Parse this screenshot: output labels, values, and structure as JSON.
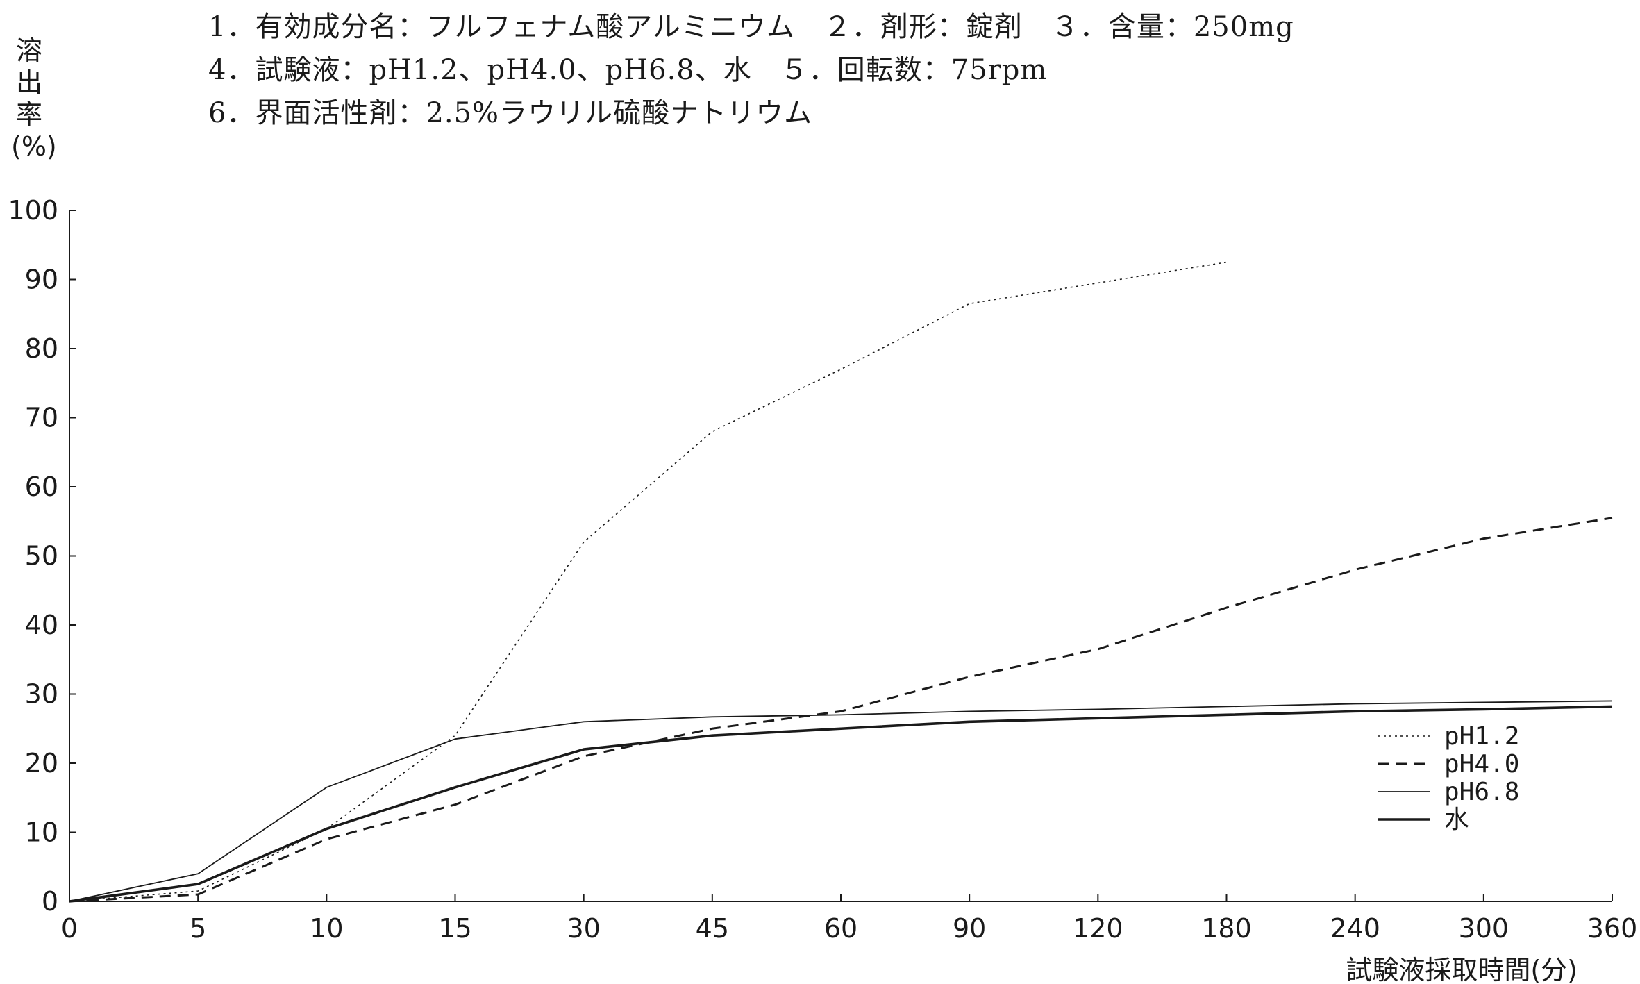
{
  "header": {
    "line1": "1．有効成分名：フルフェナム酸アルミニウム　２．剤形：錠剤　３．含量：250mg",
    "line2": "4．試験液：pH1.2、pH4.0、pH6.8、水　５．回転数：75rpm",
    "line3": "6．界面活性剤：2.5%ラウリル硫酸ナトリウム"
  },
  "chart_data": {
    "type": "line",
    "title": "",
    "ylabel_chars": [
      "溶",
      "出",
      "率",
      "(%)"
    ],
    "xlabel": "試験液採取時間(分)",
    "categories": [
      "0",
      "5",
      "10",
      "15",
      "30",
      "45",
      "60",
      "90",
      "120",
      "180",
      "240",
      "300",
      "360"
    ],
    "yticks": [
      "0",
      "10",
      "20",
      "30",
      "40",
      "50",
      "60",
      "70",
      "80",
      "90",
      "100"
    ],
    "ylim": [
      0,
      100
    ],
    "grid": false,
    "legend_position": "right",
    "series": [
      {
        "name": "pH1.2",
        "style": "dotted",
        "values": [
          0,
          1.5,
          10.5,
          24,
          52,
          68,
          77,
          86.5,
          89.5,
          92.5,
          null,
          null,
          null
        ]
      },
      {
        "name": "pH4.0",
        "style": "dashed",
        "values": [
          0,
          1,
          9,
          14,
          21,
          25,
          27.5,
          32.5,
          36.5,
          42.5,
          48,
          52.5,
          55.5
        ]
      },
      {
        "name": "pH6.8",
        "style": "thin",
        "values": [
          0,
          4,
          16.5,
          23.5,
          26,
          26.7,
          27,
          27.5,
          27.8,
          28.2,
          28.6,
          28.8,
          29
        ]
      },
      {
        "name": "水",
        "style": "thick",
        "values": [
          0,
          2.5,
          10.5,
          16.5,
          22,
          24,
          25,
          26,
          26.5,
          27,
          27.5,
          27.8,
          28.2
        ]
      }
    ]
  }
}
